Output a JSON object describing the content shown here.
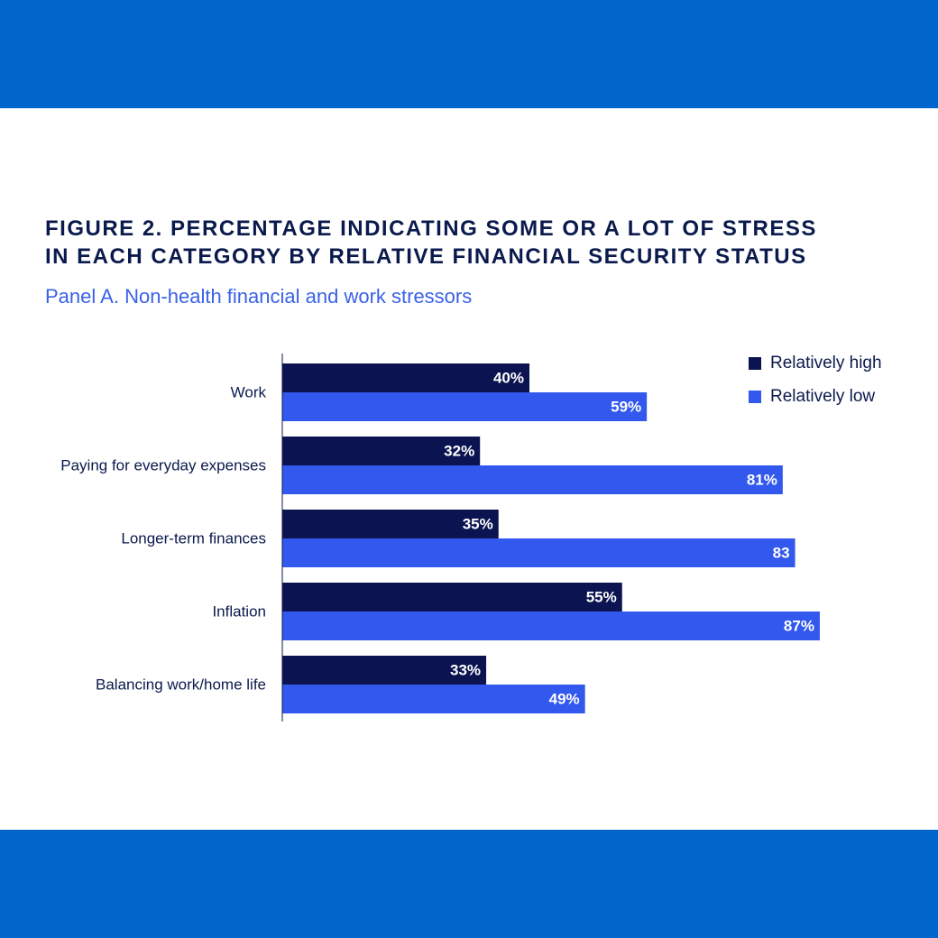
{
  "figure": {
    "title_line1": "FIGURE 2. PERCENTAGE INDICATING SOME OR A LOT OF STRESS",
    "title_line2": "IN EACH CATEGORY BY RELATIVE FINANCIAL SECURITY STATUS",
    "subtitle": "Panel A. Non-health financial and work stressors"
  },
  "colors": {
    "band": "#0066CC",
    "title": "#0B1A4D",
    "subtitle": "#3A61E8",
    "high": "#0B1450",
    "low": "#3258EE"
  },
  "chart_data": {
    "type": "bar",
    "orientation": "horizontal",
    "legend_position": "top-right",
    "grid": false,
    "xlim": [
      0,
      100
    ],
    "categories": [
      "Work",
      "Paying for everyday expenses",
      "Longer-term finances",
      "Inflation",
      "Balancing work/home life"
    ],
    "series": [
      {
        "name": "Relatively high",
        "color": "#0B1450",
        "values": [
          40,
          32,
          35,
          55,
          33
        ],
        "labels": [
          "40%",
          "32%",
          "35%",
          "55%",
          "33%"
        ]
      },
      {
        "name": "Relatively low",
        "color": "#3258EE",
        "values": [
          59,
          81,
          83,
          87,
          49
        ],
        "labels": [
          "59%",
          "81%",
          "83",
          "87%",
          "49%"
        ]
      }
    ]
  }
}
